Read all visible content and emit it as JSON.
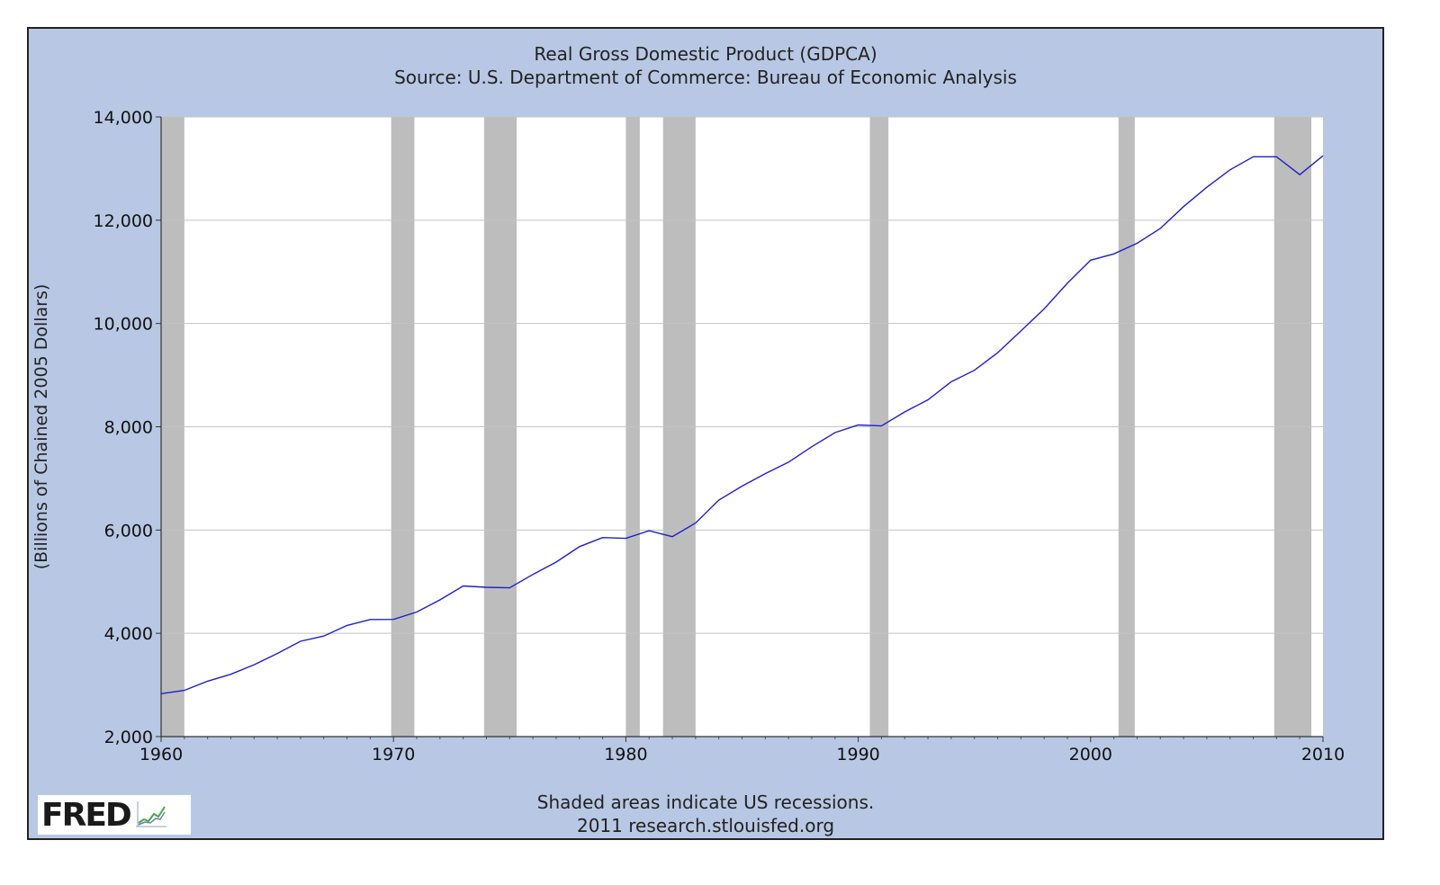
{
  "chart_data": {
    "type": "line",
    "title": "Real Gross Domestic Product (GDPCA)",
    "subtitle": "Source: U.S. Department of Commerce: Bureau of Economic Analysis",
    "ylabel": "(Billions of Chained 2005 Dollars)",
    "xlabel": "",
    "xlim": [
      1960,
      2010
    ],
    "ylim": [
      2000,
      14000
    ],
    "xticks": [
      "1960",
      "1970",
      "1980",
      "1990",
      "2000",
      "2010"
    ],
    "yticks": [
      "2,000",
      "4,000",
      "6,000",
      "8,000",
      "10,000",
      "12,000",
      "14,000"
    ],
    "grid": "horizontal",
    "line_color": "#1f1fcc",
    "recession_color": "#bdbdbd",
    "recessions": [
      [
        1960.0,
        1961.0
      ],
      [
        1969.9,
        1970.9
      ],
      [
        1973.9,
        1975.3
      ],
      [
        1980.0,
        1980.6
      ],
      [
        1981.6,
        1983.0
      ],
      [
        1990.5,
        1991.3
      ],
      [
        2001.2,
        2001.9
      ],
      [
        2007.9,
        2009.5
      ]
    ],
    "x": [
      1960,
      1961,
      1962,
      1963,
      1964,
      1965,
      1966,
      1967,
      1968,
      1969,
      1970,
      1971,
      1972,
      1973,
      1974,
      1975,
      1976,
      1977,
      1978,
      1979,
      1980,
      1981,
      1982,
      1983,
      1984,
      1985,
      1986,
      1987,
      1988,
      1989,
      1990,
      1991,
      1992,
      1993,
      1994,
      1995,
      1996,
      1997,
      1998,
      1999,
      2000,
      2001,
      2002,
      2003,
      2004,
      2005,
      2006,
      2007,
      2008,
      2009,
      2010
    ],
    "series": [
      {
        "values": [
          2830,
          2896,
          3072,
          3207,
          3392,
          3610,
          3846,
          3948,
          4153,
          4268,
          4270,
          4413,
          4648,
          4918,
          4892,
          4880,
          5141,
          5378,
          5678,
          5855,
          5839,
          5987,
          5871,
          6137,
          6581,
          6850,
          7093,
          7314,
          7613,
          7886,
          8034,
          8015,
          8287,
          8523,
          8871,
          9094,
          9434,
          9855,
          10284,
          10780,
          11226,
          11347,
          11553,
          11841,
          12264,
          12638,
          12976,
          13229,
          13229,
          12881,
          13248
        ]
      }
    ]
  },
  "footer": {
    "note": "Shaded areas indicate US recessions.",
    "credit": "2011 research.stlouisfed.org"
  },
  "logo": {
    "text": "FRED",
    "icon": "chart-graph-icon"
  }
}
